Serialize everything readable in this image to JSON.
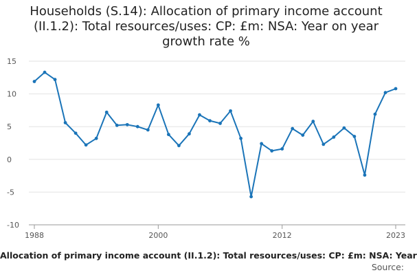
{
  "chart_title": "Households (S.14): Allocation of primary income account (II.1.2): Total resources/uses: CP: £m: NSA: Year on year growth rate %",
  "footer": {
    "caption": "Allocation of primary income account (II.1.2): Total resources/uses: CP: £m: NSA: Year",
    "source_label": "Source:"
  },
  "colors": {
    "line": "#1a74b8",
    "grid": "#e2e2e2",
    "axis": "#999999"
  },
  "chart_data": {
    "type": "line",
    "title": "Households (S.14): Allocation of primary income account (II.1.2): Total resources/uses: CP: £m: NSA: Year on year growth rate %",
    "xlabel": "",
    "ylabel": "",
    "ylim": [
      -10,
      15
    ],
    "xlim": [
      1988,
      2023
    ],
    "yticks": [
      15,
      10,
      5,
      0,
      -5,
      -10
    ],
    "xticks": [
      1988,
      2000,
      2012,
      2023
    ],
    "grid": true,
    "series": [
      {
        "x": [
          1988,
          1989,
          1990,
          1991,
          1992,
          1993,
          1994,
          1995,
          1996,
          1997,
          1998,
          1999,
          2000,
          2001,
          2002,
          2003,
          2004,
          2005,
          2006,
          2007,
          2008,
          2009,
          2010,
          2011,
          2012,
          2013,
          2014,
          2015,
          2016,
          2017,
          2018,
          2019,
          2020,
          2021,
          2022,
          2023
        ],
        "y": [
          11.9,
          13.3,
          12.2,
          5.6,
          4.0,
          2.2,
          3.2,
          7.2,
          5.2,
          5.3,
          5.0,
          4.5,
          8.3,
          3.8,
          2.1,
          3.9,
          6.8,
          5.9,
          5.5,
          7.4,
          3.2,
          -5.7,
          2.4,
          1.3,
          1.6,
          4.7,
          3.7,
          5.8,
          2.3,
          3.4,
          4.8,
          3.5,
          -2.4,
          6.9,
          10.2,
          10.8
        ]
      }
    ]
  }
}
